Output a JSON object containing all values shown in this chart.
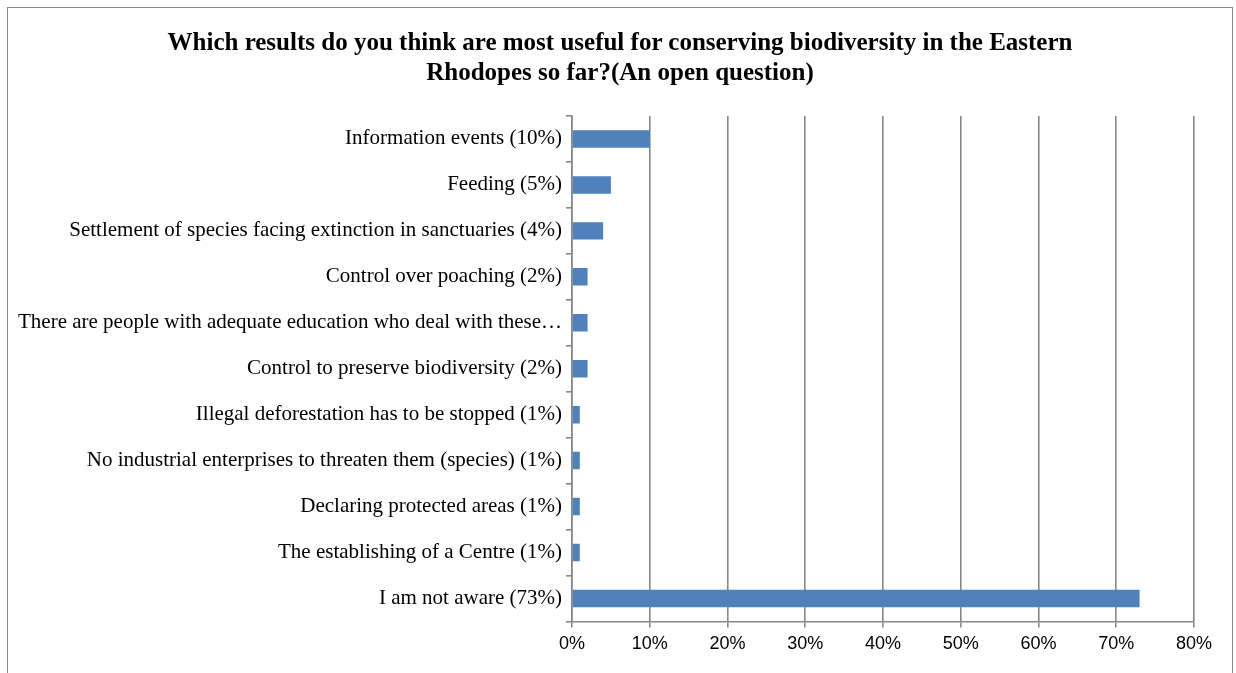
{
  "chart_data": {
    "type": "bar",
    "orientation": "horizontal",
    "title": "Which results do you think are most useful for conserving biodiversity in the Eastern Rhodopes so far?(An open question)",
    "categories": [
      "Information events (10%)",
      "Feeding (5%)",
      "Settlement of species facing extinction in sanctuaries (4%)",
      "Control over poaching (2%)",
      "There are people with adequate education who deal with these…",
      "Control to preserve biodiversity (2%)",
      "Illegal deforestation has to be stopped (1%)",
      "No industrial enterprises to threaten them (species) (1%)",
      "Declaring protected areas (1%)",
      "The establishing of a Centre (1%)",
      "I am not aware (73%)"
    ],
    "values": [
      10,
      5,
      4,
      2,
      2,
      2,
      1,
      1,
      1,
      1,
      73
    ],
    "color": "#4f81bd",
    "xlim": [
      0,
      80
    ],
    "xticks": [
      {
        "value": 0,
        "label": "0%"
      },
      {
        "value": 10,
        "label": "10%"
      },
      {
        "value": 20,
        "label": "20%"
      },
      {
        "value": 30,
        "label": "30%"
      },
      {
        "value": 40,
        "label": "40%"
      },
      {
        "value": 50,
        "label": "50%"
      },
      {
        "value": 60,
        "label": "60%"
      },
      {
        "value": 70,
        "label": "70%"
      },
      {
        "value": 80,
        "label": "80%"
      }
    ],
    "grid": "x"
  }
}
